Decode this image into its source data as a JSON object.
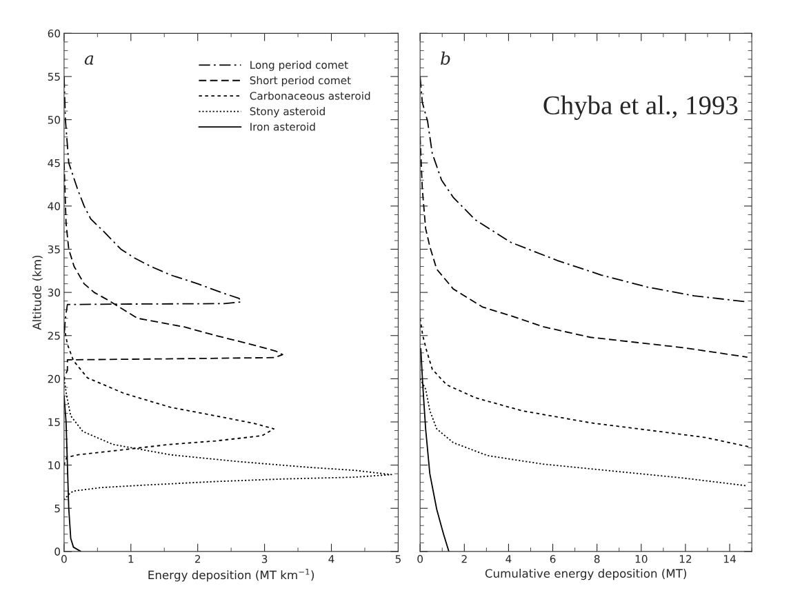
{
  "chart_data": [
    {
      "type": "line",
      "xlabel": "Energy deposition (MT km$^{−1}$)",
      "ylabel": "Altitude (km)",
      "xlim": [
        0,
        5
      ],
      "xticks": [
        0,
        1,
        2,
        3,
        4,
        5
      ],
      "ylim": [
        0,
        60
      ],
      "yticks": [
        0,
        5,
        10,
        15,
        20,
        25,
        30,
        35,
        40,
        45,
        50,
        55,
        60
      ],
      "grid": false,
      "legend": "top right",
      "annotations": [
        "a"
      ],
      "series": [
        {
          "name": "Long period comet",
          "color": "#000000",
          "line_style": "dashdot",
          "x": [
            0,
            0.02,
            0.07,
            0.2,
            0.3,
            0.4,
            0.6,
            0.85,
            1.05,
            1.3,
            1.6,
            2.0,
            2.35,
            2.62,
            2.65,
            2.4,
            1.0,
            0.05,
            0.02,
            0
          ],
          "values": [
            55,
            50,
            45,
            42,
            40,
            38.5,
            37,
            35,
            34,
            33,
            32,
            31,
            30,
            29.3,
            28.9,
            28.7,
            28.65,
            28.6,
            27,
            25
          ]
        },
        {
          "name": "Short period comet",
          "color": "#000000",
          "line_style": "dashed",
          "x": [
            0,
            0.03,
            0.07,
            0.15,
            0.3,
            0.45,
            0.66,
            1.1,
            1.8,
            2.27,
            2.79,
            3.17,
            3.27,
            3.15,
            1.5,
            0.15,
            0.05,
            0.05,
            0
          ],
          "values": [
            45,
            38,
            35,
            33,
            31,
            30,
            29.1,
            27,
            26,
            25,
            24,
            23.2,
            22.8,
            22.45,
            22.3,
            22.2,
            22.2,
            21,
            20
          ]
        },
        {
          "name": "Carbonaceous asteroid",
          "color": "#000000",
          "line_style": "short dashed",
          "x": [
            0,
            0.05,
            0.14,
            0.35,
            0.9,
            1.59,
            2.27,
            2.86,
            3.14,
            2.96,
            2.27,
            1.59,
            0.9,
            0.21,
            0.04,
            0
          ],
          "values": [
            26,
            24,
            22.1,
            20.1,
            18.3,
            16.7,
            15.7,
            14.8,
            14.2,
            13.4,
            12.8,
            12.4,
            11.8,
            11.2,
            10.9,
            10
          ]
        },
        {
          "name": "Stony asteroid",
          "color": "#000000",
          "line_style": "dotted",
          "x": [
            0,
            0.04,
            0.1,
            0.28,
            0.73,
            1.59,
            2.62,
            3.65,
            4.34,
            4.9,
            4.34,
            3.3,
            2.27,
            1.24,
            0.56,
            0.14,
            0.07,
            0
          ],
          "values": [
            20,
            18.0,
            15.7,
            13.9,
            12.4,
            11.2,
            10.4,
            9.75,
            9.4,
            8.9,
            8.6,
            8.4,
            8.1,
            7.7,
            7.4,
            7.0,
            6.6,
            6
          ]
        },
        {
          "name": "Iron asteroid",
          "color": "#000000",
          "line_style": "solid",
          "x": [
            0,
            0.03,
            0.05,
            0.07,
            0.1,
            0.14,
            0.25
          ],
          "values": [
            18,
            15,
            10,
            5,
            1.5,
            0.5,
            0
          ]
        }
      ]
    },
    {
      "type": "line",
      "xlabel": "Cumulative energy deposition (MT)",
      "xlim": [
        0,
        15
      ],
      "xticks": [
        0,
        2,
        4,
        6,
        8,
        10,
        12,
        14
      ],
      "ylim": [
        0,
        60
      ],
      "yticks": [
        {
          "value": 0,
          "label": null
        },
        {
          "value": 5,
          "label": null
        },
        {
          "value": 10,
          "label": null
        },
        {
          "value": 15,
          "label": null
        },
        {
          "value": 20,
          "label": null
        },
        {
          "value": 25,
          "label": null
        },
        {
          "value": 30,
          "label": null
        },
        {
          "value": 35,
          "label": null
        },
        {
          "value": 40,
          "label": null
        },
        {
          "value": 45,
          "label": null
        },
        {
          "value": 50,
          "label": null
        },
        {
          "value": 55,
          "label": null
        },
        {
          "value": 60,
          "label": null
        }
      ],
      "tick_labels": "x",
      "grid": false,
      "annotations": [
        "b",
        "Chyba et al., 1993"
      ],
      "series": [
        {
          "color": "#000000",
          "line_style": "dashdot",
          "x": [
            0,
            0.1,
            0.34,
            0.55,
            0.97,
            1.5,
            2.5,
            4.1,
            6.2,
            8.2,
            10.3,
            12.4,
            14.8
          ],
          "values": [
            55,
            52,
            49.8,
            46.1,
            43.0,
            41.0,
            38.4,
            35.8,
            33.7,
            32.0,
            30.6,
            29.6,
            28.9
          ]
        },
        {
          "color": "#000000",
          "line_style": "dashed",
          "x": [
            0,
            0.1,
            0.25,
            0.44,
            0.75,
            1.5,
            2.83,
            4.1,
            5.6,
            7.7,
            9.8,
            11.9,
            14.8
          ],
          "values": [
            48,
            42,
            37.4,
            35.3,
            32.7,
            30.4,
            28.3,
            27.3,
            26.0,
            24.8,
            24.2,
            23.6,
            22.5
          ]
        },
        {
          "color": "#000000",
          "line_style": "short dashed",
          "x": [
            0,
            0.12,
            0.3,
            0.55,
            1.2,
            2.5,
            4.6,
            7.7,
            10.8,
            12.9,
            14.9
          ],
          "values": [
            27,
            25.0,
            23.2,
            21.1,
            19.3,
            17.8,
            16.3,
            14.9,
            13.9,
            13.2,
            12.1
          ]
        },
        {
          "color": "#000000",
          "line_style": "dotted",
          "x": [
            0,
            0.25,
            0.44,
            0.75,
            1.5,
            3.05,
            5.6,
            8.75,
            11.9,
            14.8
          ],
          "values": [
            20,
            18.8,
            16.3,
            14.2,
            12.6,
            11.1,
            10.1,
            9.3,
            8.5,
            7.6
          ]
        },
        {
          "color": "#000000",
          "line_style": "solid",
          "x": [
            0.03,
            0.12,
            0.25,
            0.44,
            0.75,
            1.06,
            1.3
          ],
          "values": [
            23.5,
            19.3,
            14.2,
            9.0,
            4.9,
            2.0,
            0
          ]
        }
      ]
    }
  ]
}
